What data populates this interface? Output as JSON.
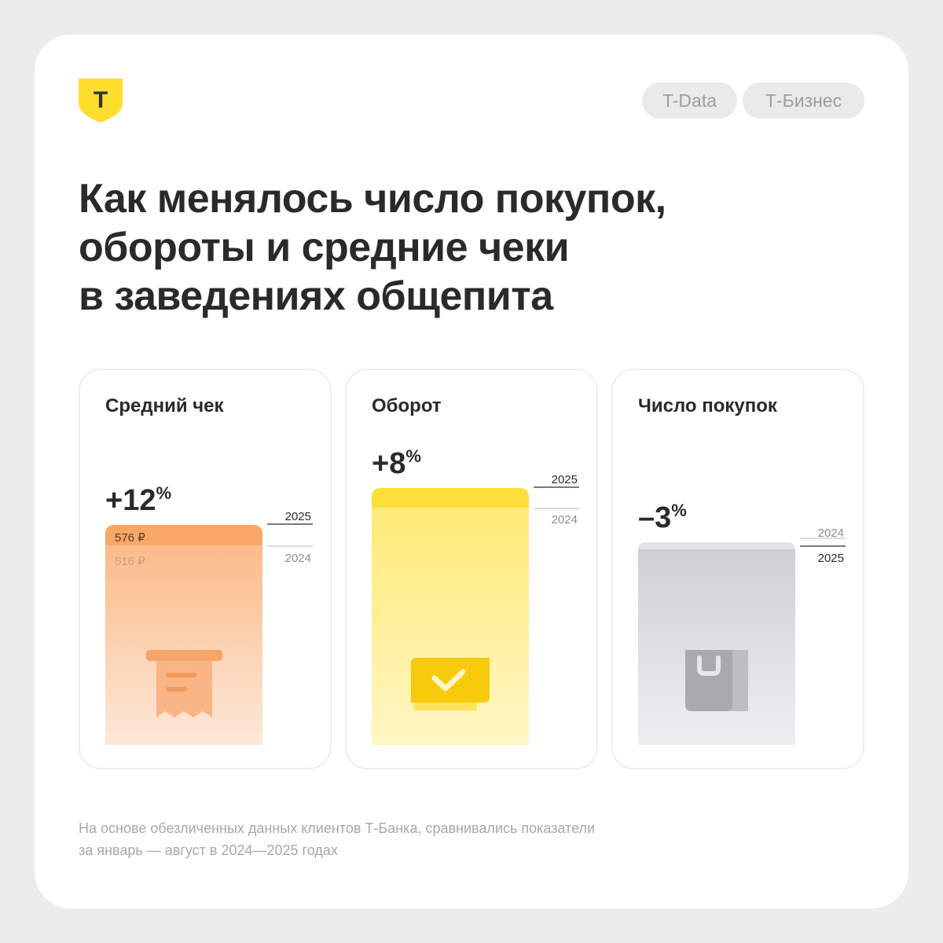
{
  "brand": {
    "logo_letter": "Т",
    "logo_color": "#ffdd2d"
  },
  "tags": [
    "T-Data",
    "Т-Бизнес"
  ],
  "title_lines": [
    "Как менялось число покупок,",
    "обороты и средние чеки",
    "в заведениях общепита"
  ],
  "colors": {
    "orange_top": "#f8a766",
    "orange_fill": "#fbc395",
    "yellow_top": "#ffde38",
    "yellow_fill": "#fff08c",
    "gray_top": "#e2e3e6",
    "gray_fill": "#d8d9dc"
  },
  "chart_data": [
    {
      "type": "bar",
      "title": "Средний чек",
      "change": {
        "sign": "+",
        "number": "12",
        "unit": "%"
      },
      "categories": [
        "2024",
        "2025"
      ],
      "values": [
        516,
        576
      ],
      "value_labels": [
        "516 ₽",
        "576 ₽"
      ],
      "color": "orange",
      "icon": "receipt-icon"
    },
    {
      "type": "bar",
      "title": "Оборот",
      "change": {
        "sign": "+",
        "number": "8",
        "unit": "%"
      },
      "categories": [
        "2024",
        "2025"
      ],
      "values": [
        100,
        108
      ],
      "color": "yellow",
      "icon": "wallet-check-icon"
    },
    {
      "type": "bar",
      "title": "Число покупок",
      "change": {
        "sign": "–",
        "number": "3",
        "unit": "%"
      },
      "categories": [
        "2024",
        "2025"
      ],
      "values": [
        100,
        97
      ],
      "color": "gray",
      "icon": "shopping-bag-icon"
    }
  ],
  "footnote_lines": [
    "На основе обезличенных данных клиентов Т-Банка, сравнивались показатели",
    "за январь — август в 2024—2025 годах"
  ]
}
